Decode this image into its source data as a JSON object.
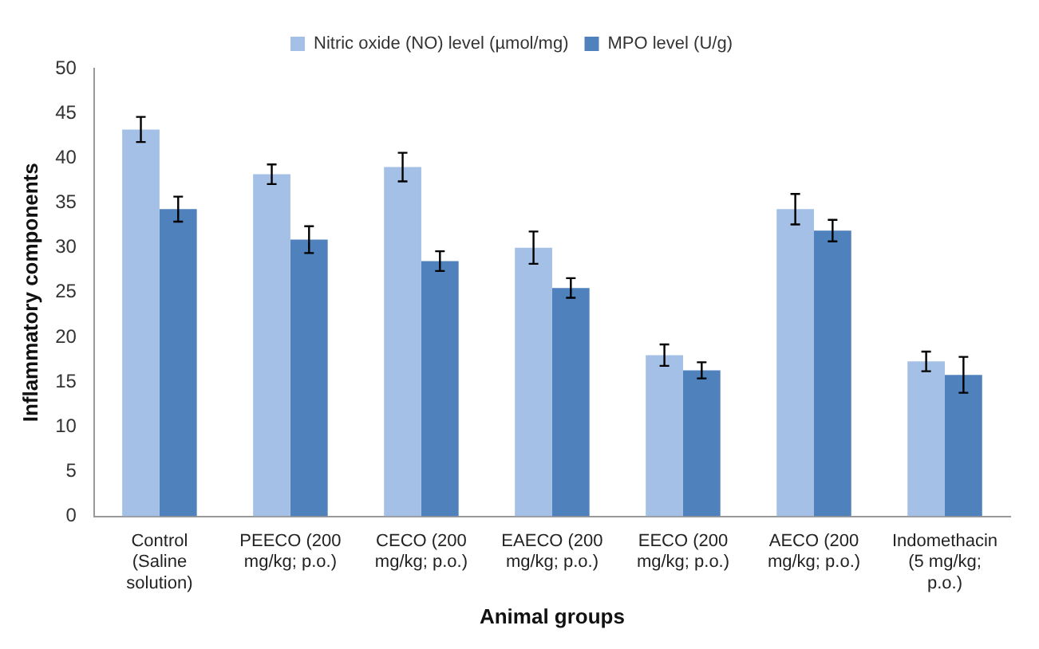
{
  "chart_data": {
    "type": "bar",
    "xlabel": "Animal groups",
    "ylabel": "Inflammatory components",
    "categories": [
      "Control (Saline solution)",
      "PEECO (200 mg/kg; p.o.)",
      "CECO (200 mg/kg; p.o.)",
      "EAECO (200 mg/kg; p.o.)",
      "EECO (200 mg/kg; p.o.)",
      "AECO (200 mg/kg; p.o.)",
      "Indomethacin (5 mg/kg; p.o.)"
    ],
    "series": [
      {
        "name": "Nitric oxide (NO) level (µmol/mg)",
        "color": "#a4c0e6",
        "values": [
          43.2,
          38.2,
          39,
          30,
          18,
          34.3,
          17.3
        ],
        "errors": [
          1.4,
          1.1,
          1.6,
          1.8,
          1.2,
          1.7,
          1.1
        ]
      },
      {
        "name": "MPO level (U/g)",
        "color": "#4f81bd",
        "values": [
          34.3,
          30.9,
          28.5,
          25.5,
          16.3,
          31.9,
          15.8
        ],
        "errors": [
          1.4,
          1.5,
          1.1,
          1.1,
          0.9,
          1.2,
          2
        ]
      }
    ],
    "ylim": [
      0,
      50
    ],
    "yticks": [
      0,
      5,
      10,
      15,
      20,
      25,
      30,
      35,
      40,
      45,
      50
    ],
    "grid": false,
    "legend": "top"
  }
}
